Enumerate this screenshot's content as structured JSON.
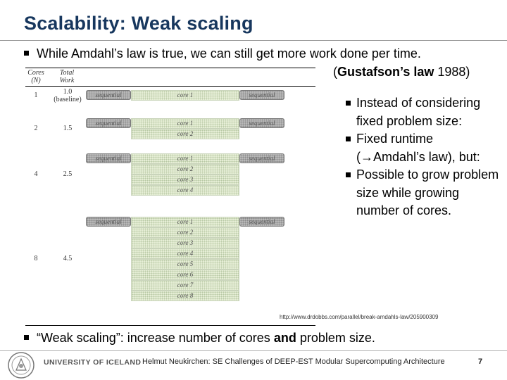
{
  "title": "Scalability: Weak scaling",
  "intro_bullet": "While Amdahl’s law is true, we can still get more work done per time.",
  "gustafson": {
    "name": "Gustafson’s law",
    "year": " 1988)",
    "open": "("
  },
  "figure": {
    "headers": {
      "cores": "Cores",
      "cores_sub": "(N)",
      "work": "Total",
      "work_sub": "Work"
    },
    "seq_label": "sequential",
    "rows": [
      {
        "n": "1",
        "work": "1.0",
        "work_sub": "(baseline)",
        "cores": [
          "core 1"
        ]
      },
      {
        "n": "2",
        "work": "1.5",
        "work_sub": "",
        "cores": [
          "core 1",
          "core 2"
        ]
      },
      {
        "n": "4",
        "work": "2.5",
        "work_sub": "",
        "cores": [
          "core 1",
          "core 2",
          "core 3",
          "core 4"
        ]
      },
      {
        "n": "8",
        "work": "4.5",
        "work_sub": "",
        "cores": [
          "core 1",
          "core 2",
          "core 3",
          "core 4",
          "core 5",
          "core 6",
          "core 7",
          "core 8"
        ]
      }
    ]
  },
  "right_bullets": [
    "Instead of considering fixed problem size:",
    "Fixed runtime (→Amdahl’s law), but:",
    "Possible to grow problem size while growing number of cores."
  ],
  "url": "http://www.drdobbs.com/parallel/break-amdahls-law/205900309",
  "bottom_bullet": {
    "pre": "“Weak scaling”: increase number of cores ",
    "bold": "and",
    "post": " problem size."
  },
  "footer": {
    "university": "UNIVERSITY OF ICELAND",
    "text": "Helmut Neukirchen: SE Challenges of DEEP-EST Modular Supercomputing Architecture",
    "page": "7"
  }
}
